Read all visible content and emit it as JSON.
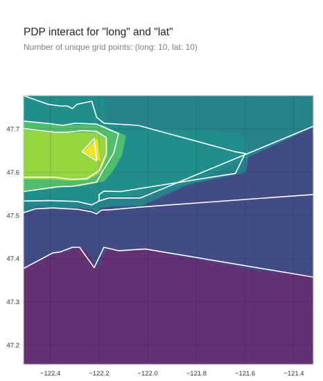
{
  "header": {
    "title": "PDP interact for \"long\" and \"lat\"",
    "subtitle": "Number of unique grid points: (long: 10, lat: 10)"
  },
  "chart_data": {
    "type": "contour",
    "title": "PDP interact for \"long\" and \"lat\"",
    "subtitle": "Number of unique grid points: (long: 10, lat: 10)",
    "xlabel": "",
    "ylabel": "",
    "xlim": [
      -122.51,
      -121.32
    ],
    "ylim": [
      47.155,
      47.777
    ],
    "x_ticks": [
      -122.4,
      -122.2,
      -122.0,
      -121.8,
      -121.6,
      -121.4
    ],
    "x_tick_labels": [
      "−122.4",
      "−122.2",
      "−122.0",
      "−121.8",
      "−121.6",
      "−121.4"
    ],
    "y_ticks": [
      47.2,
      47.3,
      47.4,
      47.5,
      47.6,
      47.7
    ],
    "y_tick_labels": [
      "47.2",
      "47.3",
      "47.4",
      "47.5",
      "47.6",
      "47.7"
    ],
    "grid": true,
    "colormap": "viridis",
    "fill_levels": [
      {
        "level": 0,
        "color": "#440154"
      },
      {
        "level": 1,
        "color": "#3b528b"
      },
      {
        "level": 2,
        "color": "#21918c"
      },
      {
        "level": 3,
        "color": "#5ec962"
      },
      {
        "level": 4,
        "color": "#a5db36"
      },
      {
        "level": 5,
        "color": "#fde725"
      }
    ],
    "contour_lines": [
      {
        "name": "boundary-1",
        "points": [
          [
            -122.51,
            47.377
          ],
          [
            -122.39,
            47.413
          ],
          [
            -122.36,
            47.415
          ],
          [
            -122.31,
            47.426
          ],
          [
            -122.28,
            47.426
          ],
          [
            -122.22,
            47.379
          ],
          [
            -122.18,
            47.426
          ],
          [
            -122.12,
            47.418
          ],
          [
            -122.01,
            47.422
          ],
          [
            -121.32,
            47.357
          ]
        ]
      },
      {
        "name": "boundary-2",
        "points": [
          [
            -122.51,
            47.506
          ],
          [
            -122.46,
            47.515
          ],
          [
            -122.39,
            47.517
          ],
          [
            -122.29,
            47.514
          ],
          [
            -122.23,
            47.508
          ],
          [
            -122.21,
            47.503
          ],
          [
            -122.19,
            47.512
          ],
          [
            -122.15,
            47.513
          ],
          [
            -122.03,
            47.519
          ],
          [
            -121.32,
            47.548
          ]
        ]
      },
      {
        "name": "boundary-3",
        "points": [
          [
            -122.51,
            47.533
          ],
          [
            -122.4,
            47.534
          ],
          [
            -122.29,
            47.532
          ],
          [
            -122.23,
            47.524
          ],
          [
            -122.2,
            47.533
          ],
          [
            -122.16,
            47.54
          ],
          [
            -122.03,
            47.54
          ],
          [
            -121.32,
            47.706
          ]
        ]
      },
      {
        "name": "boundary-4",
        "points": [
          [
            -122.51,
            47.777
          ],
          [
            -122.41,
            47.757
          ],
          [
            -122.36,
            47.753
          ],
          [
            -122.33,
            47.753
          ],
          [
            -122.31,
            47.747
          ],
          [
            -122.29,
            47.757
          ],
          [
            -122.23,
            47.764
          ],
          [
            -122.21,
            47.727
          ],
          [
            -122.18,
            47.713
          ],
          [
            -122.04,
            47.708
          ],
          [
            -121.64,
            47.647
          ],
          [
            -121.6,
            47.643
          ],
          [
            -121.64,
            47.597
          ],
          [
            -122.11,
            47.555
          ],
          [
            -122.18,
            47.556
          ],
          [
            -122.2,
            47.548
          ],
          [
            -122.2,
            47.533
          ]
        ]
      },
      {
        "name": "boundary-5",
        "points": [
          [
            -122.51,
            47.718
          ],
          [
            -122.4,
            47.712
          ],
          [
            -122.35,
            47.708
          ],
          [
            -122.3,
            47.713
          ],
          [
            -122.21,
            47.711
          ],
          [
            -122.12,
            47.689
          ],
          [
            -122.14,
            47.644
          ],
          [
            -122.18,
            47.607
          ],
          [
            -122.21,
            47.577
          ],
          [
            -122.31,
            47.567
          ],
          [
            -122.37,
            47.566
          ],
          [
            -122.51,
            47.555
          ]
        ]
      },
      {
        "name": "boundary-6",
        "points": [
          [
            -122.51,
            47.701
          ],
          [
            -122.38,
            47.692
          ],
          [
            -122.33,
            47.692
          ],
          [
            -122.27,
            47.696
          ],
          [
            -122.21,
            47.694
          ],
          [
            -122.17,
            47.68
          ],
          [
            -122.17,
            47.642
          ],
          [
            -122.2,
            47.603
          ],
          [
            -122.25,
            47.585
          ],
          [
            -122.31,
            47.583
          ],
          [
            -122.38,
            47.588
          ],
          [
            -122.51,
            47.588
          ]
        ]
      },
      {
        "name": "boundary-7",
        "points": [
          [
            -122.27,
            47.647
          ],
          [
            -122.22,
            47.678
          ],
          [
            -122.21,
            47.626
          ],
          [
            -122.27,
            47.647
          ]
        ]
      }
    ]
  }
}
